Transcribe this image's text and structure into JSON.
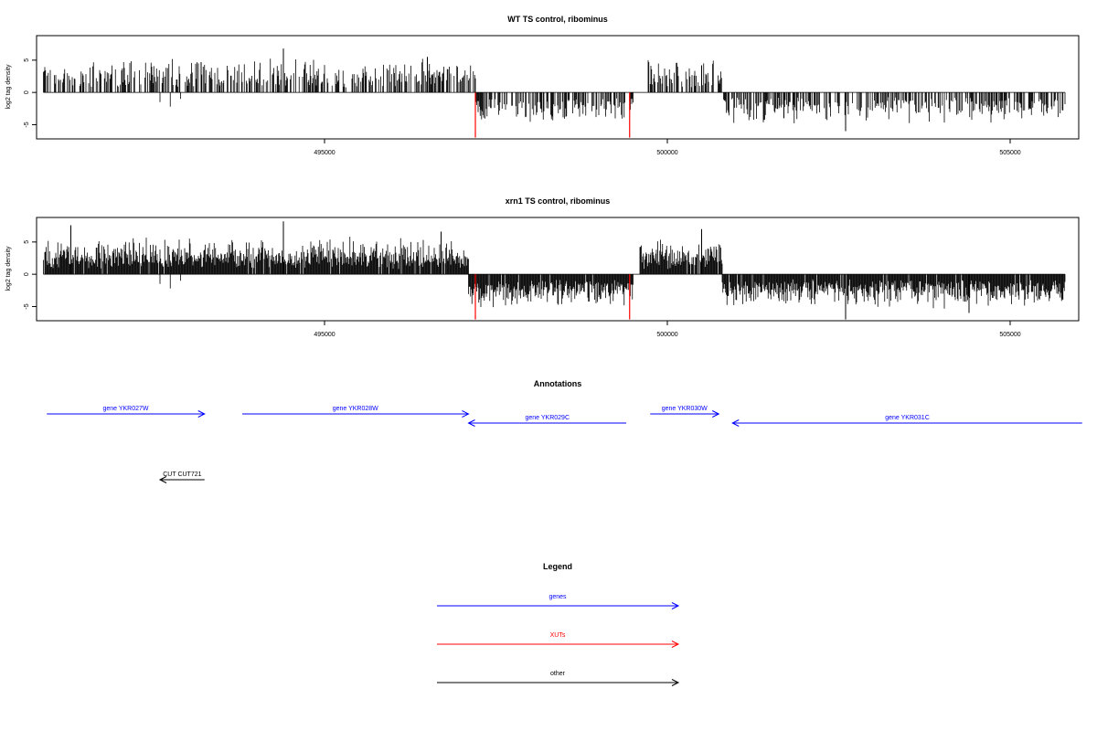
{
  "colors": {
    "gene": "#0000ff",
    "xut": "#ff0000",
    "other": "#000000",
    "axis": "#000000"
  },
  "chart_data": [
    {
      "type": "bar",
      "title": "WT TS control, ribominus",
      "ylabel": "log2 tag density",
      "xlim": [
        490800,
        506000
      ],
      "ylim": [
        -7.2,
        8.8
      ],
      "xticks": [
        495000,
        500000,
        505000
      ],
      "yticks": [
        -5,
        0,
        5
      ],
      "sense_regions": [
        [
          490900,
          497200
        ],
        [
          499700,
          500800
        ]
      ],
      "antisense_regions": [
        [
          497200,
          499500
        ],
        [
          500800,
          505800
        ]
      ],
      "sense_amp": 5.5,
      "antisense_amp": 5.0,
      "peaks": [
        [
          494400,
          6.8
        ],
        [
          493200,
          4.7
        ],
        [
          496500,
          5.5
        ],
        [
          500500,
          4.2
        ],
        [
          502600,
          -6.0
        ],
        [
          501700,
          -4.0
        ]
      ],
      "highlights": [
        {
          "x": 497200,
          "y": -7.0,
          "color": "#ff0000"
        },
        {
          "x": 499450,
          "y": -7.0,
          "color": "#ff0000"
        }
      ],
      "grid": false,
      "density": 0.55
    },
    {
      "type": "bar",
      "title": "xrn1 TS control, ribominus",
      "ylabel": "log2 tag density",
      "xlim": [
        490800,
        506000
      ],
      "ylim": [
        -7.2,
        8.8
      ],
      "xticks": [
        495000,
        500000,
        505000
      ],
      "yticks": [
        -5,
        0,
        5
      ],
      "sense_regions": [
        [
          490900,
          497100
        ],
        [
          499600,
          500800
        ]
      ],
      "antisense_regions": [
        [
          497100,
          499500
        ],
        [
          500800,
          505800
        ]
      ],
      "sense_amp": 6.0,
      "antisense_amp": 5.5,
      "peaks": [
        [
          494400,
          8.2
        ],
        [
          491300,
          7.6
        ],
        [
          496700,
          6.6
        ],
        [
          500500,
          7.0
        ],
        [
          502600,
          -7.0
        ],
        [
          504400,
          -6.0
        ]
      ],
      "highlights": [
        {
          "x": 497200,
          "y": -7.0,
          "color": "#ff0000"
        },
        {
          "x": 499450,
          "y": -7.0,
          "color": "#ff0000"
        }
      ],
      "grid": false,
      "density": 0.95
    }
  ],
  "annotations": {
    "title": "Annotations",
    "features": [
      {
        "label": "gene YKR027W",
        "kind": "gene",
        "start": 490950,
        "end": 493250,
        "strand": "+",
        "row": 0
      },
      {
        "label": "gene YKR028W",
        "kind": "gene",
        "start": 493800,
        "end": 497100,
        "strand": "+",
        "row": 0
      },
      {
        "label": "gene YKR029C",
        "kind": "gene",
        "start": 497100,
        "end": 499400,
        "strand": "-",
        "row": 1
      },
      {
        "label": "gene YKR030W",
        "kind": "gene",
        "start": 499750,
        "end": 500750,
        "strand": "+",
        "row": 0
      },
      {
        "label": "gene YKR031C",
        "kind": "gene",
        "start": 500950,
        "end": 506050,
        "strand": "-",
        "row": 1
      },
      {
        "label": "CUT CUT721",
        "kind": "other",
        "start": 492600,
        "end": 493250,
        "strand": "-",
        "row": 2
      }
    ]
  },
  "legend": {
    "title": "Legend",
    "items": [
      {
        "label": "genes",
        "kind": "gene"
      },
      {
        "label": "XUTs",
        "kind": "xut"
      },
      {
        "label": "other",
        "kind": "other"
      }
    ]
  }
}
